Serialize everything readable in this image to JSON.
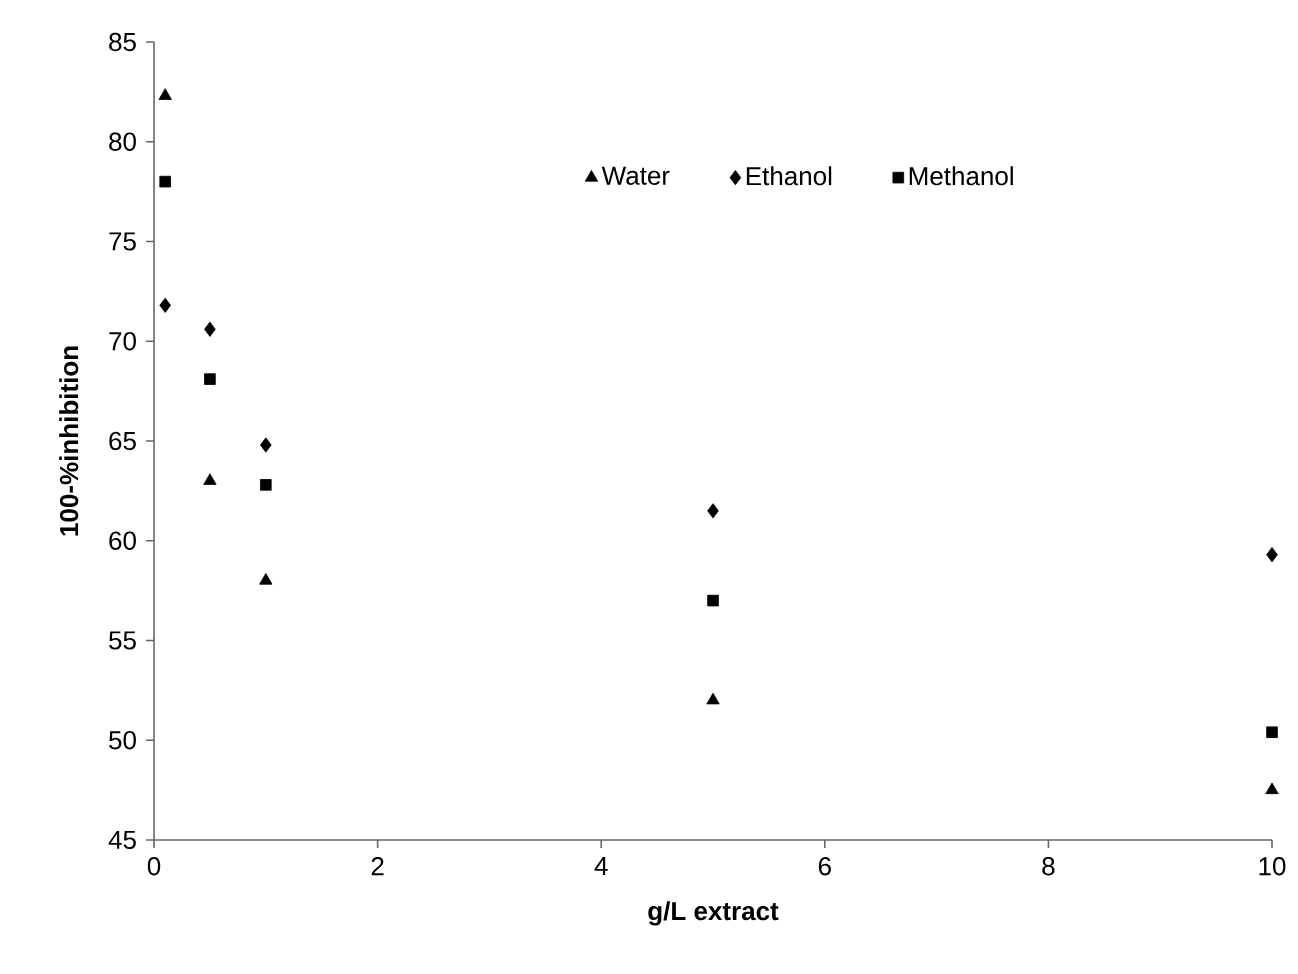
{
  "chart_data": {
    "type": "scatter",
    "xlabel": "g/L extract",
    "ylabel": "100-%inhibition",
    "legend": "top right",
    "grid": false,
    "xlim": [
      0,
      10
    ],
    "xticks": [
      0,
      2,
      4,
      6,
      8,
      10
    ],
    "ylim": [
      45,
      85
    ],
    "yticks": [
      45,
      50,
      55,
      60,
      65,
      70,
      75,
      80,
      85
    ],
    "series": [
      {
        "name": "Water",
        "color": "#000000",
        "marker": "triangle",
        "x": [
          0.1,
          0.5,
          1,
          5,
          10
        ],
        "values": [
          82.3,
          63,
          58,
          52,
          47.5
        ]
      },
      {
        "name": "Ethanol",
        "color": "#000000",
        "marker": "diamond",
        "x": [
          0.1,
          0.5,
          1,
          5,
          10
        ],
        "values": [
          71.8,
          70.6,
          64.8,
          61.5,
          59.3
        ]
      },
      {
        "name": "Methanol",
        "color": "#000000",
        "marker": "square",
        "x": [
          0.1,
          0.5,
          1,
          5,
          10
        ],
        "values": [
          78,
          68.1,
          62.8,
          57,
          50.4
        ]
      }
    ]
  }
}
